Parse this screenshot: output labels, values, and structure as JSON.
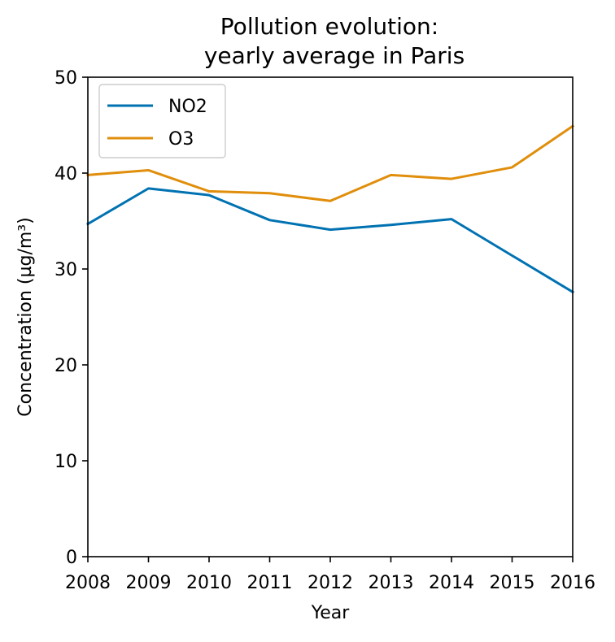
{
  "chart_data": {
    "type": "line",
    "title_lines": [
      "Pollution evolution:",
      "yearly average in Paris"
    ],
    "xlabel": "Year",
    "ylabel": "Concentration (µg/m³)",
    "x": [
      "2008",
      "2009",
      "2010",
      "2011",
      "2012",
      "2013",
      "2014",
      "2015",
      "2016"
    ],
    "xlim": [
      2008,
      2016
    ],
    "ylim": [
      0,
      50
    ],
    "yticks": [
      "0",
      "10",
      "20",
      "30",
      "40",
      "50"
    ],
    "grid": false,
    "legend_position": "top-left",
    "series": [
      {
        "name": "NO2",
        "color": "#0072b2",
        "values": [
          34.7,
          38.4,
          37.7,
          35.1,
          34.1,
          34.6,
          35.2,
          31.4,
          27.6
        ]
      },
      {
        "name": "O3",
        "color": "#e08e0b",
        "values": [
          39.8,
          40.3,
          38.1,
          37.9,
          37.1,
          39.8,
          39.4,
          40.6,
          44.9
        ]
      }
    ]
  }
}
